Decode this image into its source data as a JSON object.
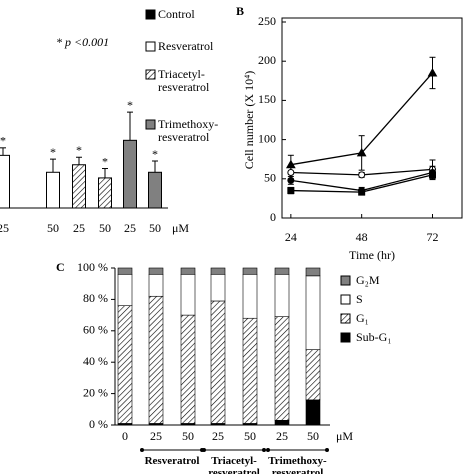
{
  "chart_data": [
    {
      "type": "bar",
      "annotation": "* p <0.001",
      "categories": [
        "25",
        "50",
        "25",
        "50",
        "25",
        "50"
      ],
      "unit": "μM",
      "values": [
        28,
        19,
        23,
        16,
        36,
        19
      ],
      "errors": [
        4,
        7,
        4,
        5,
        15,
        6
      ],
      "significance": [
        "*",
        "*",
        "*",
        "*",
        "*",
        "*"
      ],
      "ylim": [
        0,
        100
      ],
      "legend": [
        {
          "name": "Control",
          "color": "#000000"
        },
        {
          "name": "Resveratrol",
          "color": "#ffffff"
        },
        {
          "name": "Triacetyl-resveratrol",
          "color": "#ffffff",
          "pattern": "hatch"
        },
        {
          "name": "Trimethoxy-resveratrol",
          "color": "#808080"
        }
      ],
      "bar_series": [
        1,
        1,
        2,
        2,
        3,
        3
      ]
    },
    {
      "type": "line",
      "panel": "B",
      "xlabel": "Time (hr)",
      "ylabel": "Cell number (X 10⁴)",
      "x": [
        24,
        48,
        72
      ],
      "xlim": [
        21,
        82
      ],
      "xticks": [
        24,
        48,
        72
      ],
      "ylim": [
        0,
        250
      ],
      "yticks": [
        0,
        50,
        100,
        150,
        200,
        250
      ],
      "series": [
        {
          "marker": "triangle",
          "color": "#000000",
          "values": [
            68,
            83,
            185
          ],
          "errors": [
            12,
            22,
            20
          ]
        },
        {
          "marker": "open-circle",
          "color": "#000000",
          "values": [
            58,
            55,
            62
          ],
          "errors": [
            8,
            3,
            12
          ]
        },
        {
          "marker": "circle",
          "color": "#000000",
          "values": [
            48,
            35,
            58
          ],
          "errors": [
            5,
            4,
            8
          ]
        },
        {
          "marker": "square",
          "color": "#000000",
          "values": [
            35,
            33,
            55
          ],
          "errors": [
            4,
            3,
            6
          ]
        }
      ]
    },
    {
      "type": "stacked_bar",
      "panel": "C",
      "categories": [
        "0",
        "25",
        "50",
        "25",
        "50",
        "25",
        "50"
      ],
      "unit": "μM",
      "groups": [
        "Resveratrol",
        "Triacetyl-resveratrol",
        "Trimethoxy-resveratrol"
      ],
      "ylim": [
        0,
        100
      ],
      "yticks": [
        {
          "value": 0,
          "label": "0 %"
        },
        {
          "value": 20,
          "label": "20 %"
        },
        {
          "value": 40,
          "label": "40 %"
        },
        {
          "value": 60,
          "label": "60 %"
        },
        {
          "value": 80,
          "label": "80 %"
        },
        {
          "value": 100,
          "label": "100 %"
        }
      ],
      "series": [
        {
          "name": "Sub-G₁",
          "color": "#000000",
          "values": [
            1,
            1,
            1,
            1,
            1,
            3,
            16
          ]
        },
        {
          "name": "G₁",
          "color": "#ffffff",
          "pattern": "hatch",
          "values": [
            75,
            81,
            69,
            78,
            67,
            66,
            32
          ]
        },
        {
          "name": "S",
          "color": "#ffffff",
          "values": [
            20,
            14,
            26,
            17,
            28,
            27,
            47
          ]
        },
        {
          "name": "G₂M",
          "color": "#808080",
          "values": [
            4,
            4,
            4,
            4,
            4,
            4,
            5
          ]
        }
      ]
    }
  ]
}
